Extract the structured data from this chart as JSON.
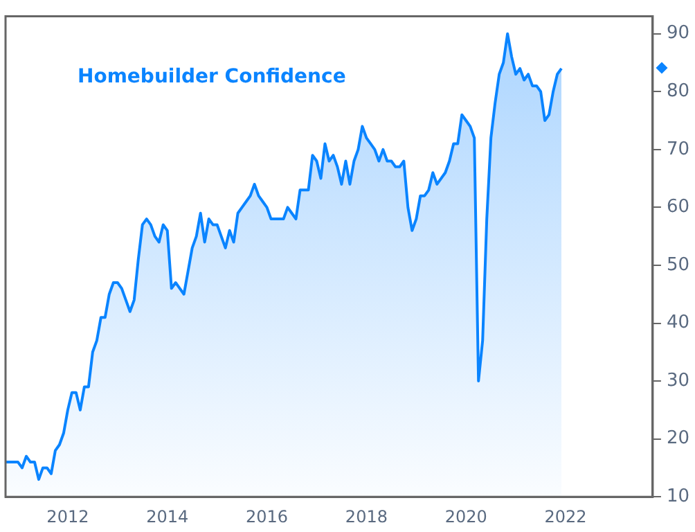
{
  "chart_data": {
    "type": "area",
    "title": "Homebuilder Confidence",
    "x": [
      "2010-10",
      "2010-11",
      "2010-12",
      "2011-01",
      "2011-02",
      "2011-03",
      "2011-04",
      "2011-05",
      "2011-06",
      "2011-07",
      "2011-08",
      "2011-09",
      "2011-10",
      "2011-11",
      "2011-12",
      "2012-01",
      "2012-02",
      "2012-03",
      "2012-04",
      "2012-05",
      "2012-06",
      "2012-07",
      "2012-08",
      "2012-09",
      "2012-10",
      "2012-11",
      "2012-12",
      "2013-01",
      "2013-02",
      "2013-03",
      "2013-04",
      "2013-05",
      "2013-06",
      "2013-07",
      "2013-08",
      "2013-09",
      "2013-10",
      "2013-11",
      "2013-12",
      "2014-01",
      "2014-02",
      "2014-03",
      "2014-04",
      "2014-05",
      "2014-06",
      "2014-07",
      "2014-08",
      "2014-09",
      "2014-10",
      "2014-11",
      "2014-12",
      "2015-01",
      "2015-02",
      "2015-03",
      "2015-04",
      "2015-05",
      "2015-06",
      "2015-07",
      "2015-08",
      "2015-09",
      "2015-10",
      "2015-11",
      "2015-12",
      "2016-01",
      "2016-02",
      "2016-03",
      "2016-04",
      "2016-05",
      "2016-06",
      "2016-07",
      "2016-08",
      "2016-09",
      "2016-10",
      "2016-11",
      "2016-12",
      "2017-01",
      "2017-02",
      "2017-03",
      "2017-04",
      "2017-05",
      "2017-06",
      "2017-07",
      "2017-08",
      "2017-09",
      "2017-10",
      "2017-11",
      "2017-12",
      "2018-01",
      "2018-02",
      "2018-03",
      "2018-04",
      "2018-05",
      "2018-06",
      "2018-07",
      "2018-08",
      "2018-09",
      "2018-10",
      "2018-11",
      "2018-12",
      "2019-01",
      "2019-02",
      "2019-03",
      "2019-04",
      "2019-05",
      "2019-06",
      "2019-07",
      "2019-08",
      "2019-09",
      "2019-10",
      "2019-11",
      "2019-12",
      "2020-01",
      "2020-02",
      "2020-03",
      "2020-04",
      "2020-05",
      "2020-06",
      "2020-07",
      "2020-08",
      "2020-09",
      "2020-10",
      "2020-11",
      "2020-12",
      "2021-01",
      "2021-02",
      "2021-03",
      "2021-04",
      "2021-05",
      "2021-06",
      "2021-07",
      "2021-08",
      "2021-09",
      "2021-10",
      "2021-11",
      "2021-12"
    ],
    "series": [
      {
        "color": "#0a84ff",
        "values": [
          16,
          16,
          16,
          16,
          15,
          17,
          16,
          16,
          13,
          15,
          15,
          14,
          18,
          19,
          21,
          25,
          28,
          28,
          25,
          29,
          29,
          35,
          37,
          41,
          41,
          45,
          47,
          47,
          46,
          44,
          42,
          44,
          51,
          57,
          58,
          57,
          55,
          54,
          57,
          56,
          46,
          47,
          46,
          45,
          49,
          53,
          55,
          59,
          54,
          58,
          57,
          57,
          55,
          53,
          56,
          54,
          59,
          60,
          61,
          62,
          64,
          62,
          61,
          60,
          58,
          58,
          58,
          58,
          60,
          59,
          58,
          63,
          63,
          63,
          69,
          68,
          65,
          71,
          68,
          69,
          67,
          64,
          68,
          64,
          68,
          70,
          74,
          72,
          71,
          70,
          68,
          70,
          68,
          68,
          67,
          67,
          68,
          60,
          56,
          58,
          62,
          62,
          63,
          66,
          64,
          65,
          66,
          68,
          71,
          71,
          76,
          75,
          74,
          72,
          30,
          37,
          58,
          72,
          78,
          83,
          85,
          90,
          86,
          83,
          84,
          82,
          83,
          81,
          81,
          80,
          75,
          76,
          80,
          83,
          84
        ]
      }
    ],
    "xlim": [
      "2010-10",
      "2023-10"
    ],
    "xticks": [
      {
        "value": "2012",
        "label": "2012"
      },
      {
        "value": "2014",
        "label": "2014"
      },
      {
        "value": "2016",
        "label": "2016"
      },
      {
        "value": "2018",
        "label": "2018"
      },
      {
        "value": "2020",
        "label": "2020"
      },
      {
        "value": "2022",
        "label": "2022"
      }
    ],
    "ylim": [
      10,
      93
    ],
    "yticks": [
      10,
      20,
      30,
      40,
      50,
      60,
      70,
      80,
      90
    ],
    "grid": false,
    "legend": false
  }
}
